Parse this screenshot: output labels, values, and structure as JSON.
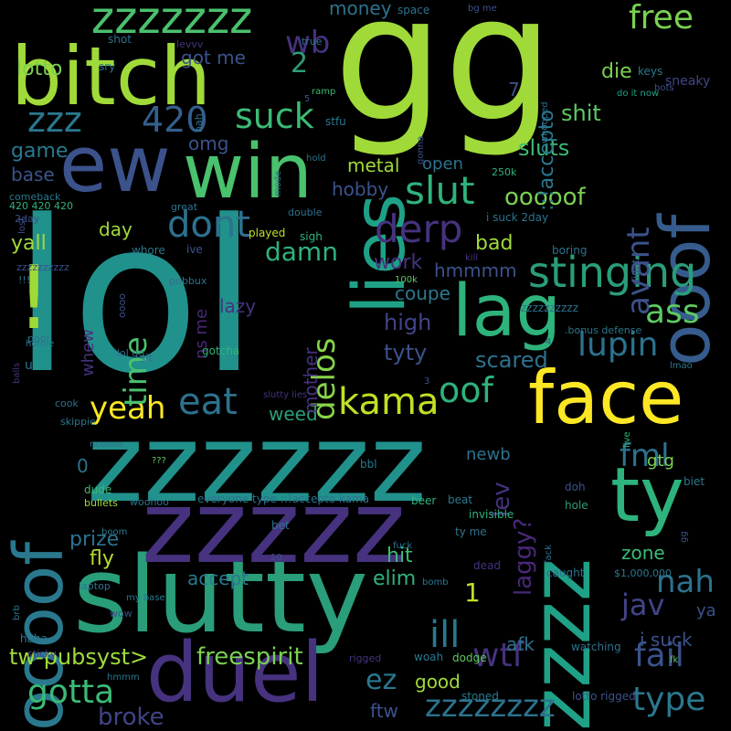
{
  "words": [
    {
      "text": "lol",
      "color": "#21918c"
    },
    {
      "text": "gg",
      "color": "#a0da39"
    },
    {
      "text": "zzzzzz",
      "color": "#21918c"
    },
    {
      "text": "slutty",
      "color": "#2a9d7a"
    },
    {
      "text": "zzzzz",
      "color": "#46327e"
    },
    {
      "text": "bitch",
      "color": "#a0da39"
    },
    {
      "text": "ew",
      "color": "#3b528b"
    },
    {
      "text": "win",
      "color": "#4ac16d"
    },
    {
      "text": "face",
      "color": "#fde725"
    },
    {
      "text": "duel",
      "color": "#46327e"
    },
    {
      "text": "lag",
      "color": "#2eb37c"
    },
    {
      "text": "lies",
      "color": "#1fa187"
    },
    {
      "text": "ooof",
      "color": "#365c8d"
    },
    {
      "text": "zzzz",
      "color": "#1fa187"
    },
    {
      "text": "ty",
      "color": "#2eb37c"
    },
    {
      "text": "oooof",
      "color": "#2a788e"
    },
    {
      "text": "!",
      "color": "#a0da39"
    },
    {
      "text": "zzzzzzz",
      "color": "#4ac16d"
    },
    {
      "text": "stinging",
      "color": "#2a9d7a"
    },
    {
      "text": "dont",
      "color": "#2c728e"
    },
    {
      "text": "derp",
      "color": "#46327e"
    },
    {
      "text": "eat",
      "color": "#2c728e"
    },
    {
      "text": "kama",
      "color": "#c2df23"
    },
    {
      "text": "slut",
      "color": "#2eb37c"
    },
    {
      "text": "yeah",
      "color": "#fde725"
    },
    {
      "text": "zzz",
      "color": "#2a788e"
    },
    {
      "text": "420",
      "color": "#355f8d"
    },
    {
      "text": "suck",
      "color": "#3bbb75"
    },
    {
      "text": "lupin",
      "color": "#2c728e"
    },
    {
      "text": "free",
      "color": "#7ad151"
    },
    {
      "text": "wb",
      "color": "#46327e"
    },
    {
      "text": "ass",
      "color": "#5ec962"
    },
    {
      "text": "gotta",
      "color": "#3bbb75"
    },
    {
      "text": "fail",
      "color": "#3b528b"
    },
    {
      "text": "ill",
      "color": "#2a788e"
    },
    {
      "text": "wtf",
      "color": "#46327e"
    },
    {
      "text": "oof",
      "color": "#2eb37c"
    },
    {
      "text": "fml",
      "color": "#2c728e"
    },
    {
      "text": "nah",
      "color": "#2c728e"
    },
    {
      "text": "jav",
      "color": "#414487"
    },
    {
      "text": "type",
      "color": "#2a788e"
    },
    {
      "text": "zzzzzzzz",
      "color": "#2c728e"
    },
    {
      "text": "ez",
      "color": "#2a788e"
    },
    {
      "text": "damn",
      "color": "#2eb37c"
    },
    {
      "text": "time",
      "color": "#4ac16d"
    },
    {
      "text": "delos",
      "color": "#86d549"
    },
    {
      "text": "avant",
      "color": "#3b528b"
    },
    {
      "text": "ooooof",
      "color": "#7ad151"
    },
    {
      "text": "scared",
      "color": "#2c728e"
    },
    {
      "text": "high",
      "color": "#414487"
    },
    {
      "text": "tyty",
      "color": "#3b528b"
    },
    {
      "text": "freespirit",
      "color": "#7ad151"
    },
    {
      "text": "tw-pubsyst>",
      "color": "#a0da39"
    },
    {
      "text": "broke",
      "color": "#414487"
    },
    {
      "text": "hmmmm",
      "color": "#3b528b"
    },
    {
      "text": "coupe",
      "color": "#2a788e"
    },
    {
      "text": "work",
      "color": "#46327e"
    },
    {
      "text": "bad",
      "color": "#a0da39"
    },
    {
      "text": "hobby",
      "color": "#3b528b"
    },
    {
      "text": "metal",
      "color": "#a0da39"
    },
    {
      "text": "sluts",
      "color": "#3bbb75"
    },
    {
      "text": "shit",
      "color": "#5ec962"
    },
    {
      "text": "die",
      "color": "#7ad151"
    },
    {
      "text": "lotto",
      "color": "#7ad151"
    },
    {
      "text": "got me",
      "color": "#3b528b"
    },
    {
      "text": "omg",
      "color": "#3b528b"
    },
    {
      "text": "game",
      "color": "#2a788e"
    },
    {
      "text": "base",
      "color": "#3b528b"
    },
    {
      "text": "day",
      "color": "#a0da39"
    },
    {
      "text": "yall",
      "color": "#a0da39"
    },
    {
      "text": "money",
      "color": "#2c728e"
    },
    {
      "text": "lev",
      "color": "#46327e"
    },
    {
      "text": "laggy?",
      "color": "#482878"
    },
    {
      "text": "gtg",
      "color": "#7ad151"
    },
    {
      "text": "prize",
      "color": "#2c728e"
    },
    {
      "text": "fly",
      "color": "#b5de2b"
    },
    {
      "text": "accept",
      "color": "#2a788e"
    },
    {
      "text": "elim",
      "color": "#2eb37c"
    },
    {
      "text": "hit",
      "color": "#3bbb75"
    },
    {
      "text": "zone",
      "color": "#3bbb75"
    },
    {
      "text": "i suck",
      "color": "#3b528b"
    },
    {
      "text": "good",
      "color": "#a0da39"
    },
    {
      "text": "afk",
      "color": "#2c728e"
    },
    {
      "text": "newb",
      "color": "#2c728e"
    },
    {
      "text": "weed",
      "color": "#2a9d7a"
    },
    {
      "text": "mother",
      "color": "#46327e"
    },
    {
      "text": "whew",
      "color": "#46327e"
    },
    {
      "text": "ns me",
      "color": "#482878"
    },
    {
      "text": "lazy",
      "color": "#46327e"
    },
    {
      "text": "open",
      "color": "#2c728e"
    },
    {
      "text": "zzzzzzzzzz",
      "color": "#2c728e"
    },
    {
      "text": "::!accepto",
      "color": "#2a788e"
    },
    {
      "text": "2",
      "color": "#2a9d7a"
    },
    {
      "text": "1",
      "color": "#c2df23"
    },
    {
      "text": "0",
      "color": "#2c728e"
    },
    {
      "text": "7",
      "color": "#3b528b"
    },
    {
      "text": "ftw",
      "color": "#3b528b"
    },
    {
      "text": "ya",
      "color": "#3b528b"
    },
    {
      "text": "sneaky",
      "color": "#414487"
    },
    {
      "text": "keys",
      "color": "#2a788e"
    },
    {
      "text": "do it now",
      "color": "#1fa187"
    },
    {
      "text": "true",
      "color": "#2c728e"
    },
    {
      "text": "ramp",
      "color": "#3bbb75"
    },
    {
      "text": "space",
      "color": "#2c728e"
    },
    {
      "text": "bg me",
      "color": "#3b528b"
    },
    {
      "text": "shot",
      "color": "#2c728e"
    },
    {
      "text": "levvv",
      "color": "#46327e"
    },
    {
      "text": "sry",
      "color": "#2c728e"
    },
    {
      "text": "stfu",
      "color": "#2a788e"
    },
    {
      "text": "250k",
      "color": "#2eb37c"
    },
    {
      "text": "i suck 2day",
      "color": "#2c728e"
    },
    {
      "text": "comeback",
      "color": "#2a788e"
    },
    {
      "text": "420 420 420",
      "color": "#2eb37c"
    },
    {
      "text": "2day",
      "color": "#3b528b"
    },
    {
      "text": "great",
      "color": "#2c728e"
    },
    {
      "text": "whore",
      "color": "#2a788e"
    },
    {
      "text": "ive",
      "color": "#3b528b"
    },
    {
      "text": "played",
      "color": "#c2df23"
    },
    {
      "text": "sigh",
      "color": "#2eb37c"
    },
    {
      "text": "kill",
      "color": "#46327e"
    },
    {
      "text": "boring",
      "color": "#2c728e"
    },
    {
      "text": "100k",
      "color": "#5ec962"
    },
    {
      "text": ".bonus defense",
      "color": "#2a788e"
    },
    {
      "text": "lmao",
      "color": "#2a788e"
    },
    {
      "text": "gotcha",
      "color": "#2eb37c"
    },
    {
      "text": "lol gg",
      "color": "#2c728e"
    },
    {
      "text": "poor",
      "color": "#2c728e"
    },
    {
      "text": "sit",
      "color": "#2c728e"
    },
    {
      "text": "slutty lies",
      "color": "#46327e"
    },
    {
      "text": "cook",
      "color": "#2c728e"
    },
    {
      "text": "skippie",
      "color": "#2a788e"
    },
    {
      "text": "nooooo",
      "color": "#2c728e"
    },
    {
      "text": "???",
      "color": "#5ec962"
    },
    {
      "text": "bbl",
      "color": "#2a788e"
    },
    {
      "text": "dude",
      "color": "#3bbb75"
    },
    {
      "text": "bullets",
      "color": "#a0da39"
    },
    {
      "text": "woohoo",
      "color": "#2c728e"
    },
    {
      "text": "everyone type ::!accepto kama",
      "color": "#2c728e"
    },
    {
      "text": "beer",
      "color": "#2eb37c"
    },
    {
      "text": "beat",
      "color": "#2a788e"
    },
    {
      "text": "invisible",
      "color": "#2eb37c"
    },
    {
      "text": "bet",
      "color": "#2c728e"
    },
    {
      "text": "ty me",
      "color": "#2c728e"
    },
    {
      "text": "fuck",
      "color": "#2a788e"
    },
    {
      "text": "dead",
      "color": "#46327e"
    },
    {
      "text": "doh",
      "color": "#3b528b"
    },
    {
      "text": "hole",
      "color": "#2a9d7a"
    },
    {
      "text": "biet",
      "color": "#2a788e"
    },
    {
      "text": "caught",
      "color": "#2c728e"
    },
    {
      "text": "$1,000,000",
      "color": "#2a788e"
    },
    {
      "text": "bomb",
      "color": "#2a788e"
    },
    {
      "text": "laptop",
      "color": "#2c728e"
    },
    {
      "text": "my base",
      "color": "#2a788e"
    },
    {
      "text": "wow",
      "color": "#3b528b"
    },
    {
      "text": "haha",
      "color": "#2a788e"
    },
    {
      "text": "sticky",
      "color": "#414487"
    },
    {
      "text": "hmmm",
      "color": "#2a788e"
    },
    {
      "text": "rigged",
      "color": "#46327e"
    },
    {
      "text": "woah",
      "color": "#2a788e"
    },
    {
      "text": "dodge",
      "color": "#5ec962"
    },
    {
      "text": "watching",
      "color": "#2c728e"
    },
    {
      "text": "stoned",
      "color": "#2a788e"
    },
    {
      "text": "lotto rigged",
      "color": "#3b528b"
    },
    {
      "text": "fk",
      "color": "#5ec962"
    },
    {
      "text": "zzzzzzzzzz",
      "color": "#3b528b"
    },
    {
      "text": "!!!",
      "color": "#2c728e"
    },
    {
      "text": "oooo",
      "color": "#3b528b"
    },
    {
      "text": "pubbux",
      "color": "#2c728e"
    },
    {
      "text": "bah",
      "color": "#2c728e"
    },
    {
      "text": "gonna",
      "color": "#3b528b"
    },
    {
      "text": "whooped",
      "color": "#2c728e"
    },
    {
      "text": "bots",
      "color": "#3b528b"
    },
    {
      "text": "hold",
      "color": "#2c728e"
    },
    {
      "text": "mode",
      "color": "#2a788e"
    },
    {
      "text": "double",
      "color": "#2c728e"
    },
    {
      "text": "didnt",
      "color": "#3b528b"
    },
    {
      "text": "lost",
      "color": "#3b528b"
    },
    {
      "text": "balls",
      "color": "#46327e"
    },
    {
      "text": "homie",
      "color": "#2a788e"
    },
    {
      "text": "u",
      "color": "#2c728e"
    },
    {
      "text": "gg",
      "color": "#3b528b"
    },
    {
      "text": "fack",
      "color": "#2c728e"
    },
    {
      "text": "live",
      "color": "#2eb37c"
    },
    {
      "text": "brb",
      "color": "#2a788e"
    },
    {
      "text": "boom",
      "color": "#2a788e"
    },
    {
      "text": "10",
      "color": "#3b528b"
    },
    {
      "text": "4",
      "color": "#3b528b"
    },
    {
      "text": "5",
      "color": "#3b528b"
    },
    {
      "text": "3",
      "color": "#3b528b"
    },
    {
      "text": "50",
      "color": "#3b528b"
    }
  ]
}
